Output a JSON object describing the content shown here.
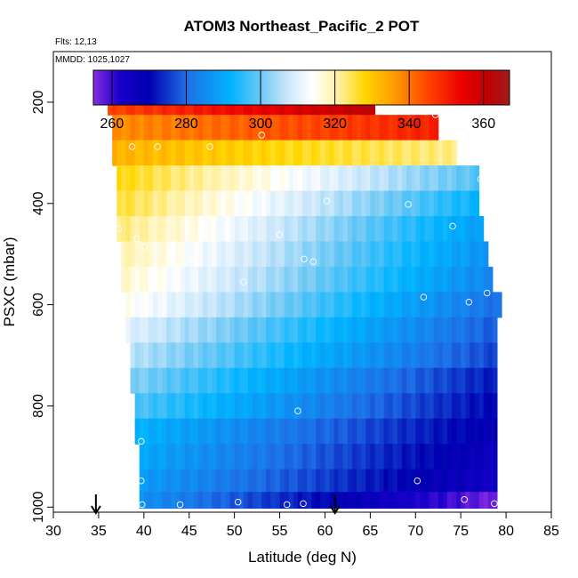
{
  "chart_data": {
    "type": "heatmap",
    "title": "ATOM3 Northeast_Pacific_2 POT",
    "subtitle_flights": "Flts: 12,13",
    "subtitle_dates": "MMDD: 1025,1027",
    "xlabel": "Latitude (deg N)",
    "ylabel": "PSXC (mbar)",
    "xlim": [
      30,
      85
    ],
    "ylim": [
      1010,
      100
    ],
    "x_ticks": [
      "30",
      "35",
      "40",
      "45",
      "50",
      "55",
      "60",
      "65",
      "70",
      "75",
      "80",
      "85"
    ],
    "y_ticks": [
      "200",
      "400",
      "600",
      "800",
      "1000"
    ],
    "colorbar": {
      "range": [
        255,
        367
      ],
      "tick_values": [
        260,
        280,
        300,
        320,
        340,
        360
      ],
      "ticks": [
        "260",
        "280",
        "300",
        "320",
        "340",
        "360"
      ],
      "gradient": [
        [
          255,
          "#8a2be2"
        ],
        [
          262,
          "#1a00cc"
        ],
        [
          270,
          "#0000b0"
        ],
        [
          280,
          "#1e6ee6"
        ],
        [
          292,
          "#00b4ff"
        ],
        [
          300,
          "#6cc8f5"
        ],
        [
          307,
          "#c8e6fa"
        ],
        [
          314,
          "#ffffff"
        ],
        [
          321,
          "#fff0a0"
        ],
        [
          328,
          "#ffd700"
        ],
        [
          336,
          "#ff9a00"
        ],
        [
          345,
          "#ff4500"
        ],
        [
          354,
          "#ee0000"
        ],
        [
          361,
          "#c00000"
        ],
        [
          367,
          "#a01c1c"
        ]
      ]
    },
    "layers": [
      {
        "pressure": 200,
        "x0": 36.0,
        "x1": 65.5,
        "v0": 345,
        "v1": 362
      },
      {
        "pressure": 250,
        "x0": 36.5,
        "x1": 72.5,
        "v0": 337,
        "v1": 350
      },
      {
        "pressure": 300,
        "x0": 36.5,
        "x1": 74.5,
        "v0": 333,
        "v1": 322
      },
      {
        "pressure": 350,
        "x0": 37.0,
        "x1": 77.0,
        "v0": 328,
        "v1": 298
      },
      {
        "pressure": 400,
        "x0": 37.0,
        "x1": 77.0,
        "v0": 326,
        "v1": 292
      },
      {
        "pressure": 450,
        "x0": 37.0,
        "x1": 77.5,
        "v0": 323,
        "v1": 288
      },
      {
        "pressure": 500,
        "x0": 37.5,
        "x1": 78.0,
        "v0": 320,
        "v1": 286
      },
      {
        "pressure": 550,
        "x0": 37.5,
        "x1": 78.5,
        "v0": 318,
        "v1": 284
      },
      {
        "pressure": 600,
        "x0": 38.0,
        "x1": 79.5,
        "v0": 315,
        "v1": 280
      },
      {
        "pressure": 650,
        "x0": 38.0,
        "x1": 79.0,
        "v0": 310,
        "v1": 278
      },
      {
        "pressure": 700,
        "x0": 38.5,
        "x1": 79.0,
        "v0": 306,
        "v1": 276
      },
      {
        "pressure": 750,
        "x0": 38.5,
        "x1": 79.0,
        "v0": 302,
        "v1": 272
      },
      {
        "pressure": 800,
        "x0": 39.0,
        "x1": 79.0,
        "v0": 298,
        "v1": 270
      },
      {
        "pressure": 850,
        "x0": 39.0,
        "x1": 79.0,
        "v0": 292,
        "v1": 268
      },
      {
        "pressure": 900,
        "x0": 39.5,
        "x1": 79.0,
        "v0": 290,
        "v1": 266
      },
      {
        "pressure": 950,
        "x0": 39.5,
        "x1": 79.0,
        "v0": 288,
        "v1": 264
      },
      {
        "pressure": 990,
        "x0": 39.5,
        "x1": 79.0,
        "v0": 286,
        "v1": 256
      }
    ],
    "points": [
      [
        36.2,
        195
      ],
      [
        65.4,
        183
      ],
      [
        38.7,
        288
      ],
      [
        41.5,
        288
      ],
      [
        47.3,
        288
      ],
      [
        53.0,
        265
      ],
      [
        72.2,
        225
      ],
      [
        77.2,
        352
      ],
      [
        60.2,
        395
      ],
      [
        69.2,
        402
      ],
      [
        37.2,
        450
      ],
      [
        39.2,
        470
      ],
      [
        40.1,
        485
      ],
      [
        43.1,
        495
      ],
      [
        45.3,
        513
      ],
      [
        55.0,
        462
      ],
      [
        58.7,
        515
      ],
      [
        57.7,
        510
      ],
      [
        74.1,
        445
      ],
      [
        51.0,
        555
      ],
      [
        70.9,
        585
      ],
      [
        75.9,
        595
      ],
      [
        77.9,
        577
      ],
      [
        57.0,
        810
      ],
      [
        39.7,
        870
      ],
      [
        39.7,
        948
      ],
      [
        70.2,
        948
      ],
      [
        39.8,
        995
      ],
      [
        44.0,
        995
      ],
      [
        50.4,
        990
      ],
      [
        55.8,
        995
      ],
      [
        57.6,
        993
      ],
      [
        75.4,
        985
      ],
      [
        78.7,
        993
      ]
    ],
    "arrows": [
      {
        "x": 34.7,
        "label": ""
      },
      {
        "x": 61.1,
        "label": ""
      }
    ]
  }
}
